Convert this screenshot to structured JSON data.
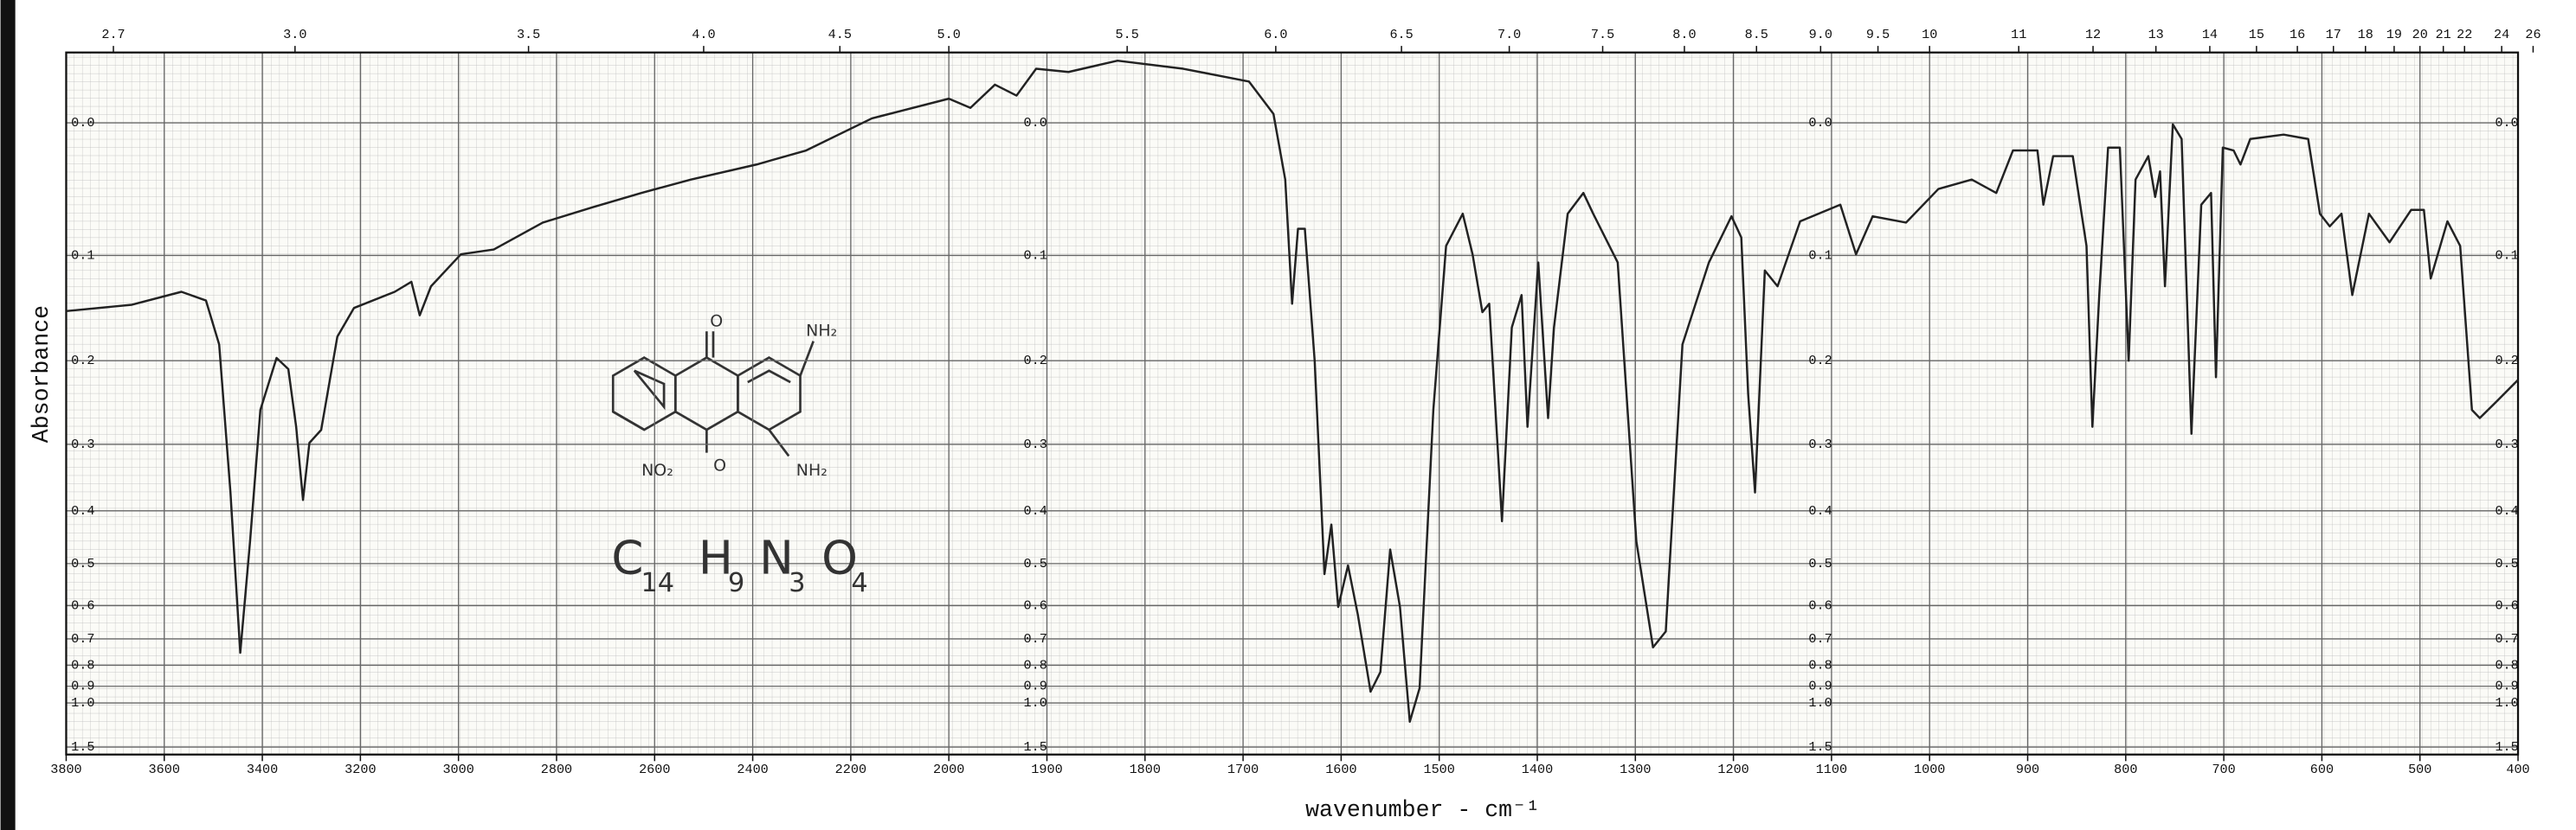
{
  "chart_data": {
    "type": "line",
    "ylabel": "Absorbance",
    "xlabel": "wavenumber - cm⁻¹",
    "xlim": [
      3800,
      400
    ],
    "x_break": 2000,
    "x_break_scale": 2,
    "xticks": [
      3800,
      3600,
      3400,
      3200,
      3000,
      2800,
      2600,
      2400,
      2200,
      2000,
      1900,
      1800,
      1700,
      1600,
      1500,
      1400,
      1300,
      1200,
      1100,
      1000,
      900,
      800,
      700,
      600,
      500,
      400
    ],
    "x2ticks": [
      2.7,
      {
        "value": 3,
        "label": "3.0"
      },
      3.5,
      {
        "value": 4,
        "label": "4.0"
      },
      4.5,
      {
        "value": 5,
        "label": "5.0"
      },
      5.5,
      {
        "value": 6,
        "label": "6.0"
      },
      6.5,
      {
        "value": 7,
        "label": "7.0"
      },
      7.5,
      {
        "value": 8,
        "label": "8.0"
      },
      8.5,
      {
        "value": 9,
        "label": "9.0"
      },
      9.5,
      10,
      11,
      12,
      13,
      14,
      15,
      16,
      17,
      18,
      19,
      20,
      21,
      22,
      24,
      26
    ],
    "yscale": "transmittance",
    "ylim": [
      -0.045,
      1.7
    ],
    "yticks": [
      {
        "value": 0,
        "label": "0.0"
      },
      0.1,
      0.2,
      0.3,
      0.4,
      0.5,
      0.6,
      0.7,
      0.8,
      0.9,
      {
        "value": 1,
        "label": "1.0"
      },
      1.5
    ],
    "grid": true,
    "structure_labels": [
      "O",
      "NH₂",
      "NO₂",
      "O",
      "NH₂"
    ],
    "formula": [
      {
        "element": "C",
        "count": 14
      },
      {
        "element": "H",
        "count": 9
      },
      {
        "element": "N",
        "count": 3
      },
      {
        "element": "O",
        "count": 4
      }
    ],
    "series": [
      {
        "color": "#222222",
        "x": [
          3800,
          3666,
          3565,
          3515,
          3488,
          3465,
          3445,
          3425,
          3404,
          3371,
          3347,
          3331,
          3317,
          3304,
          3280,
          3247,
          3213,
          3130,
          3096,
          3079,
          3056,
          2995,
          2928,
          2828,
          2727,
          2627,
          2526,
          2392,
          2291,
          2157,
          2000,
          1978,
          1953,
          1931,
          1911,
          1878,
          1828,
          1761,
          1694,
          1669,
          1657,
          1650,
          1644,
          1637,
          1627,
          1617,
          1610,
          1603,
          1593,
          1583,
          1570,
          1560,
          1550,
          1540,
          1530,
          1520,
          1506,
          1493,
          1476,
          1466,
          1456,
          1449,
          1436,
          1426,
          1416,
          1410,
          1399,
          1389,
          1383,
          1369,
          1353,
          1343,
          1318,
          1299,
          1282,
          1269,
          1252,
          1225,
          1202,
          1192,
          1185,
          1178,
          1168,
          1155,
          1132,
          1091,
          1075,
          1058,
          1024,
          991,
          957,
          932,
          915,
          890,
          884,
          874,
          854,
          840,
          834,
          827,
          818,
          806,
          797,
          790,
          777,
          770,
          765,
          760,
          752,
          743,
          733,
          723,
          713,
          708,
          701,
          690,
          683,
          673,
          639,
          614,
          602,
          592,
          580,
          569,
          552,
          531,
          509,
          496,
          489,
          472,
          459,
          447,
          439,
          422,
          400
        ],
        "values": [
          0.15,
          0.144,
          0.132,
          0.14,
          0.183,
          0.37,
          0.75,
          0.455,
          0.256,
          0.197,
          0.209,
          0.277,
          0.382,
          0.298,
          0.281,
          0.175,
          0.147,
          0.132,
          0.123,
          0.154,
          0.127,
          0.099,
          0.095,
          0.073,
          0.061,
          0.05,
          0.04,
          0.029,
          0.019,
          -0.003,
          -0.016,
          -0.01,
          -0.025,
          -0.018,
          -0.035,
          -0.033,
          -0.04,
          -0.035,
          -0.027,
          -0.006,
          0.04,
          0.143,
          0.078,
          0.078,
          0.2,
          0.523,
          0.424,
          0.604,
          0.504,
          0.625,
          0.93,
          0.83,
          0.471,
          0.604,
          1.15,
          0.91,
          0.256,
          0.092,
          0.066,
          0.099,
          0.151,
          0.143,
          0.418,
          0.166,
          0.135,
          0.277,
          0.106,
          0.266,
          0.166,
          0.066,
          0.05,
          0.066,
          0.106,
          0.455,
          0.73,
          0.676,
          0.183,
          0.106,
          0.068,
          0.085,
          0.237,
          0.37,
          0.113,
          0.127,
          0.072,
          0.059,
          0.099,
          0.068,
          0.073,
          0.047,
          0.04,
          0.05,
          0.019,
          0.019,
          0.059,
          0.023,
          0.023,
          0.092,
          0.277,
          0.135,
          0.017,
          0.017,
          0.2,
          0.04,
          0.023,
          0.053,
          0.034,
          0.127,
          0.001,
          0.011,
          0.286,
          0.059,
          0.05,
          0.218,
          0.017,
          0.019,
          0.029,
          0.011,
          0.008,
          0.011,
          0.066,
          0.076,
          0.066,
          0.135,
          0.066,
          0.089,
          0.063,
          0.063,
          0.12,
          0.072,
          0.092,
          0.256,
          0.266,
          0.246,
          0.221
        ]
      }
    ]
  }
}
